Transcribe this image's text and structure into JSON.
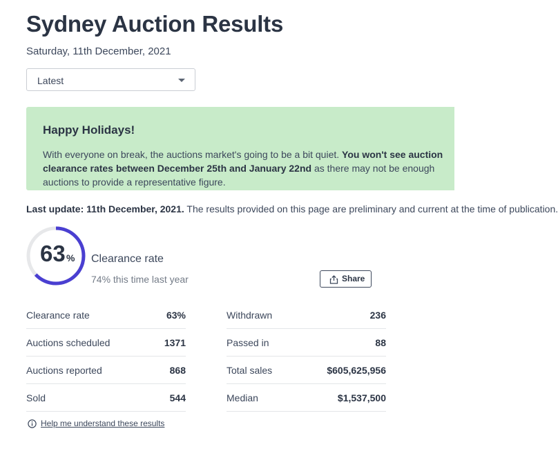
{
  "header": {
    "title": "Sydney Auction Results",
    "date": "Saturday, 11th December, 2021"
  },
  "filter": {
    "selected": "Latest"
  },
  "banner": {
    "title": "Happy Holidays!",
    "text_plain_1": "With everyone on break, the auctions market's going to be a bit quiet. ",
    "text_bold": "You won't see auction clearance rates between December 25th and January 22nd",
    "text_plain_2": " as there may not be enough auctions to provide a representative figure.",
    "background_color": "#c8ebc9"
  },
  "update": {
    "bold": "Last update: 11th December, 2021.",
    "text": " The results provided on this page are preliminary and current at the time of publication."
  },
  "clearance": {
    "value": "63",
    "unit": "%",
    "fraction": 0.63,
    "label": "Clearance rate",
    "last_year": "74% this time last year",
    "gauge_color": "#4a3fd1",
    "gauge_track_color": "#e7e8ea"
  },
  "share": {
    "label": "Share"
  },
  "stats_left": [
    {
      "label": "Clearance rate",
      "value": "63%"
    },
    {
      "label": "Auctions scheduled",
      "value": "1371"
    },
    {
      "label": "Auctions reported",
      "value": "868"
    },
    {
      "label": "Sold",
      "value": "544"
    }
  ],
  "stats_right": [
    {
      "label": "Withdrawn",
      "value": "236"
    },
    {
      "label": "Passed in",
      "value": "88"
    },
    {
      "label": "Total sales",
      "value": "$605,625,956"
    },
    {
      "label": "Median",
      "value": "$1,537,500"
    }
  ],
  "help": {
    "label": "Help me understand these results"
  }
}
